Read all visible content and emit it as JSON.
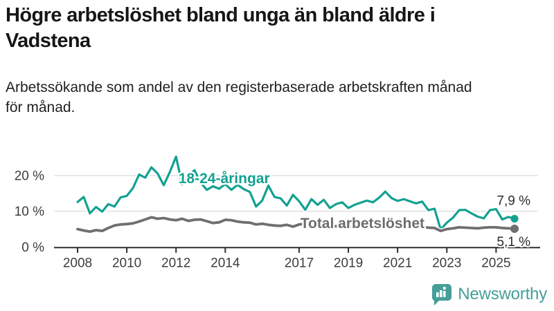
{
  "header": {
    "title": "Högre arbetslöshet bland unga än bland äldre i\nVadstena",
    "subtitle": "Arbetssökande som andel av den registerbaserade arbetskraften månad\nför månad."
  },
  "chart_data": {
    "type": "line",
    "unit": "%",
    "x_start": 2008.0,
    "x_step": 0.25,
    "x_tick_years": [
      2008,
      2010,
      2012,
      2014,
      2017,
      2019,
      2021,
      2023,
      2025
    ],
    "x_tick_labels": [
      "2008",
      "2010",
      "2012",
      "2014",
      "2017",
      "2019",
      "2021",
      "2023",
      "2025"
    ],
    "y_ticks": [
      {
        "value": 0,
        "label": "0 %"
      },
      {
        "value": 10,
        "label": "10 %"
      },
      {
        "value": 20,
        "label": "20 %"
      }
    ],
    "ylim": [
      0,
      27
    ],
    "grid": "horizontal",
    "legend_position": "inline-annotations",
    "series": [
      {
        "name": "18-24-åringar",
        "color": "#12a191",
        "end_label": "7,9 %",
        "last_value": 7.9,
        "values": [
          12.6,
          14.0,
          9.4,
          11.2,
          9.9,
          12.0,
          11.3,
          13.9,
          14.3,
          16.5,
          20.3,
          19.4,
          22.3,
          20.6,
          17.3,
          21.0,
          25.3,
          17.5,
          20.0,
          21.5,
          18.0,
          16.0,
          17.0,
          16.3,
          17.6,
          16.0,
          17.4,
          16.2,
          15.4,
          11.3,
          13.0,
          17.2,
          14.0,
          13.6,
          11.6,
          14.6,
          12.8,
          10.4,
          13.4,
          11.8,
          13.2,
          10.9,
          12.0,
          12.5,
          10.9,
          11.8,
          12.4,
          13.0,
          12.5,
          13.8,
          15.5,
          13.7,
          12.9,
          13.4,
          12.8,
          12.2,
          12.7,
          10.3,
          10.7,
          4.9,
          6.8,
          8.2,
          10.3,
          10.4,
          9.4,
          8.5,
          8.0,
          10.3,
          10.6,
          7.7,
          8.4,
          7.9
        ]
      },
      {
        "name": "Total arbetslöshet",
        "color": "#716d71",
        "end_label": "5,1 %",
        "last_value": 5.1,
        "values": [
          5.0,
          4.6,
          4.3,
          4.7,
          4.5,
          5.3,
          6.0,
          6.3,
          6.4,
          6.6,
          7.1,
          7.7,
          8.3,
          7.9,
          8.1,
          7.7,
          7.5,
          7.9,
          7.3,
          7.6,
          7.7,
          7.2,
          6.7,
          6.9,
          7.6,
          7.5,
          7.1,
          6.9,
          6.8,
          6.3,
          6.5,
          6.2,
          6.0,
          5.9,
          6.2,
          5.7,
          6.3,
          6.5,
          6.2,
          6.0,
          5.9,
          5.7,
          5.8,
          5.6,
          5.5,
          5.6,
          5.7,
          5.8,
          6.0,
          6.6,
          6.8,
          6.5,
          6.2,
          6.1,
          5.9,
          5.7,
          5.6,
          5.4,
          5.3,
          4.5,
          5.0,
          5.2,
          5.5,
          5.4,
          5.3,
          5.2,
          5.4,
          5.5,
          5.5,
          5.3,
          5.2,
          5.1
        ]
      }
    ],
    "annotations": [
      {
        "text": "18-24-åringar",
        "x_year": 2012.1,
        "y_value": 17.9,
        "color": "#12a191"
      },
      {
        "text": "Total arbetslöshet",
        "x_year": 2017.05,
        "y_value": 5.3,
        "color": "#6f6b6f"
      }
    ]
  },
  "logo": {
    "name": "Newsworthy",
    "color": "#459e98"
  }
}
